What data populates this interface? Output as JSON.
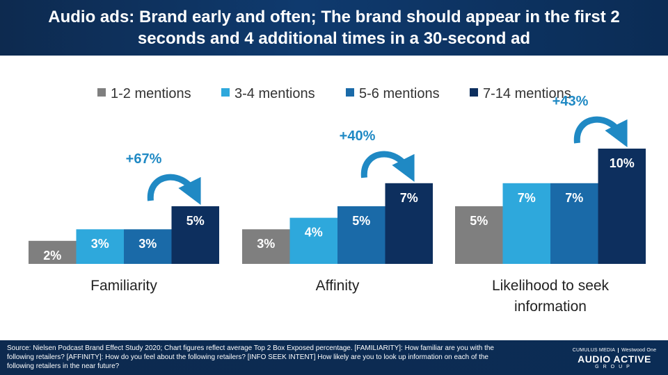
{
  "header": {
    "title": "Audio ads: Brand early and often; The brand should appear in the first 2 seconds and 4 additional times in a 30-second ad"
  },
  "colors": {
    "header_bg": "#0f3a6e",
    "series": [
      "#7f7f7f",
      "#2ea8dc",
      "#1a6aa8",
      "#0d2f5e"
    ],
    "arrow": "#1f89c4",
    "increase_label": "#1f89c4"
  },
  "chart_data": {
    "type": "bar",
    "categories": [
      "Familiarity",
      "Affinity",
      "Likelihood to seek information"
    ],
    "series": [
      {
        "name": "1-2 mentions",
        "values": [
          2,
          3,
          5
        ]
      },
      {
        "name": "3-4 mentions",
        "values": [
          3,
          4,
          7
        ]
      },
      {
        "name": "5-6 mentions",
        "values": [
          3,
          5,
          7
        ]
      },
      {
        "name": "7-14 mentions",
        "values": [
          5,
          7,
          10
        ]
      }
    ],
    "data_labels": [
      [
        "2%",
        "3%",
        "3%",
        "5%"
      ],
      [
        "3%",
        "4%",
        "5%",
        "7%"
      ],
      [
        "5%",
        "7%",
        "7%",
        "10%"
      ]
    ],
    "increase_labels": [
      "+67%",
      "+40%",
      "+43%"
    ],
    "unit": "%",
    "legend": "top",
    "grid": false
  },
  "footer": {
    "source": "Source: Nielsen Podcast Brand Effect Study 2020; Chart figures reflect average Top 2 Box Exposed percentage. [FAMILIARITY]: How familiar are you with the following retailers? [AFFINITY]: How do you feel about the following retailers? [INFO SEEK INTENT] How likely are you to look up information on each of the following retailers in the near future?",
    "logo_left": "CUMULUS MEDIA",
    "logo_right": "Westwood One",
    "logo_main": "AUDIO ACTIVE",
    "logo_sub": "GROUP"
  }
}
